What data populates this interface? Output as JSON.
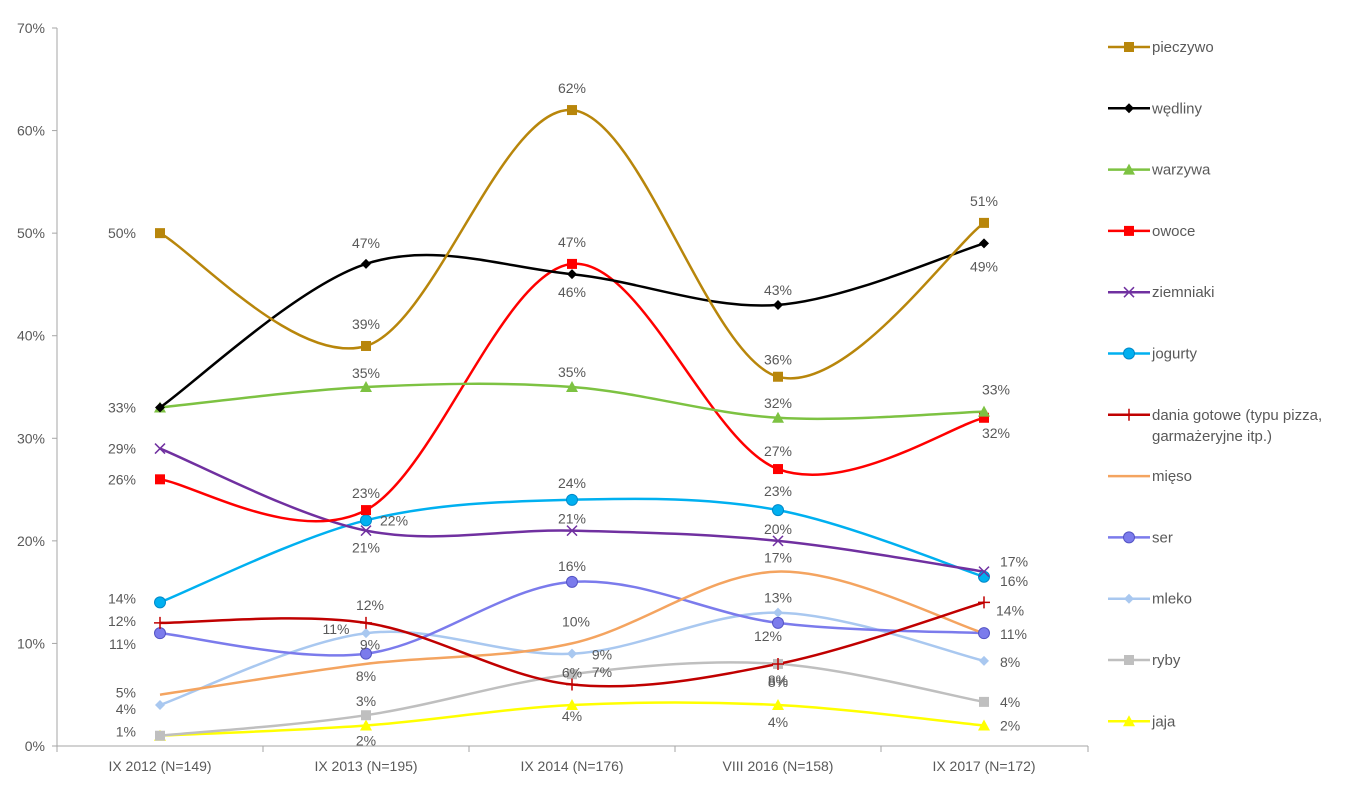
{
  "chart_data": {
    "type": "line",
    "title": "",
    "xlabel": "",
    "ylabel": "",
    "ylim": [
      0,
      70
    ],
    "y_ticks": [
      "0%",
      "10%",
      "20%",
      "30%",
      "40%",
      "50%",
      "60%",
      "70%"
    ],
    "y_tick_values": [
      0,
      10,
      20,
      30,
      40,
      50,
      60,
      70
    ],
    "categories": [
      "IX 2012 (N=149)",
      "IX 2013 (N=195)",
      "IX 2014 (N=176)",
      "VIII 2016 (N=158)",
      "IX 2017 (N=172)"
    ],
    "grid": false,
    "legend_position": "right",
    "series": [
      {
        "name": "pieczywo",
        "color": "#b8860b",
        "marker": "square",
        "values": [
          50,
          39,
          62,
          36,
          51
        ],
        "labels": [
          "50%",
          "39%",
          "62%",
          "36%",
          "51%"
        ]
      },
      {
        "name": "wędliny",
        "color": "#000000",
        "marker": "diamond",
        "values": [
          33,
          47,
          46,
          43,
          49
        ],
        "labels": [
          "",
          "47%",
          "46%",
          "43%",
          "49%"
        ]
      },
      {
        "name": "warzywa",
        "color": "#7dc242",
        "marker": "triangle",
        "values": [
          33,
          35,
          35,
          32,
          32.6
        ],
        "labels": [
          "33%",
          "35%",
          "35%",
          "32%",
          "33%"
        ]
      },
      {
        "name": "owoce",
        "color": "#ff0000",
        "marker": "square",
        "values": [
          26,
          23,
          47,
          27,
          32
        ],
        "labels": [
          "26%",
          "23%",
          "47%",
          "27%",
          "32%"
        ]
      },
      {
        "name": "ziemniaki",
        "color": "#7030a0",
        "marker": "x",
        "values": [
          29,
          21,
          21,
          20,
          17
        ],
        "labels": [
          "29%",
          "21%",
          "21%",
          "20%",
          "17%"
        ]
      },
      {
        "name": "jogurty",
        "color": "#00b0f0",
        "marker": "circle",
        "values": [
          14,
          22,
          24,
          23,
          16.5
        ],
        "labels": [
          "14%",
          "22%",
          "24%",
          "23%",
          "16%"
        ]
      },
      {
        "name": "dania gotowe (typu pizza, garmażeryjne itp.)",
        "name_lines": [
          "dania gotowe (typu pizza,",
          "garmażeryjne itp.)"
        ],
        "color": "#c00000",
        "marker": "plus",
        "values": [
          12,
          12,
          6,
          8,
          14
        ],
        "labels": [
          "12%",
          "12%",
          "6%",
          "8%",
          "14%"
        ]
      },
      {
        "name": "mięso",
        "color": "#f4a460",
        "marker": "none",
        "values": [
          5,
          8,
          10,
          17,
          11
        ],
        "labels": [
          "5%",
          "8%",
          "10%",
          "17%",
          ""
        ]
      },
      {
        "name": "ser",
        "color": "#7b7bec",
        "marker": "circle",
        "values": [
          11,
          9,
          16,
          12,
          11
        ],
        "labels": [
          "11%",
          "9%",
          "16%",
          "12%",
          "11%"
        ]
      },
      {
        "name": "mleko",
        "color": "#a9c8f0",
        "marker": "diamond",
        "values": [
          4,
          11,
          9,
          13,
          8.3
        ],
        "labels": [
          "4%",
          "11%",
          "9%",
          "13%",
          "8%"
        ]
      },
      {
        "name": "ryby",
        "color": "#bfbfbf",
        "marker": "square",
        "values": [
          1,
          3,
          7,
          8,
          4.3
        ],
        "labels": [
          "",
          "3%",
          "7%",
          "8%",
          "4%"
        ]
      },
      {
        "name": "jaja",
        "color": "#ffff00",
        "marker": "triangle",
        "values": [
          1,
          2,
          4,
          4,
          2
        ],
        "labels": [
          "1%",
          "2%",
          "4%",
          "4%",
          "2%"
        ]
      }
    ]
  }
}
